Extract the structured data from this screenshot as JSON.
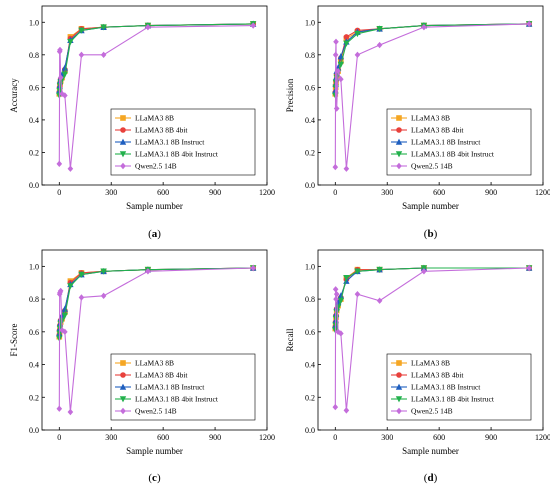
{
  "figure": {
    "panels": [
      {
        "letter": "a",
        "label_open": "(",
        "label_close": ")"
      },
      {
        "letter": "b",
        "label_open": "(",
        "label_close": ")"
      },
      {
        "letter": "c",
        "label_open": "(",
        "label_close": ")"
      },
      {
        "letter": "d",
        "label_open": "(",
        "label_close": ")"
      }
    ]
  },
  "chart_data": [
    {
      "type": "line",
      "ylabel": "Accuracy",
      "xlabel": "Sample number",
      "xlim": [
        -100,
        1200
      ],
      "ylim": [
        0,
        1.1
      ],
      "xticks": [
        0,
        300,
        600,
        900,
        1200
      ],
      "yticks": [
        0.0,
        0.2,
        0.4,
        0.6,
        0.8,
        1.0
      ],
      "x": [
        0,
        2,
        4,
        8,
        16,
        32,
        64,
        128,
        256,
        512,
        1120
      ],
      "legend_position": "lower-right",
      "series": [
        {
          "name": "LLaMA3 8B",
          "color": "#f5a623",
          "marker": "square",
          "values": [
            0.56,
            0.59,
            0.62,
            0.64,
            0.66,
            0.7,
            0.91,
            0.96,
            0.97,
            0.98,
            0.99
          ]
        },
        {
          "name": "LLaMA3 8B 4bit",
          "color": "#e8413c",
          "marker": "circle",
          "values": [
            0.57,
            0.6,
            0.62,
            0.65,
            0.67,
            0.71,
            0.9,
            0.96,
            0.97,
            0.98,
            0.99
          ]
        },
        {
          "name": "LLaMA3.1 8B Instruct",
          "color": "#1f5fbf",
          "marker": "triangle-up",
          "values": [
            0.58,
            0.61,
            0.64,
            0.66,
            0.68,
            0.72,
            0.89,
            0.95,
            0.97,
            0.98,
            0.99
          ]
        },
        {
          "name": "LLaMA3.1 8B 4bit Instruct",
          "color": "#22b14c",
          "marker": "triangle-down",
          "values": [
            0.55,
            0.58,
            0.61,
            0.63,
            0.65,
            0.68,
            0.88,
            0.95,
            0.97,
            0.98,
            0.99
          ]
        },
        {
          "name": "Qwen2.5 14B",
          "color": "#c46ddb",
          "marker": "diamond",
          "values": [
            0.13,
            0.82,
            0.83,
            0.66,
            0.56,
            0.55,
            0.1,
            0.8,
            0.8,
            0.97,
            0.98
          ]
        }
      ]
    },
    {
      "type": "line",
      "ylabel": "Precision",
      "xlabel": "Sample number",
      "xlim": [
        -100,
        1200
      ],
      "ylim": [
        0,
        1.1
      ],
      "xticks": [
        0,
        300,
        600,
        900,
        1200
      ],
      "yticks": [
        0.0,
        0.2,
        0.4,
        0.6,
        0.8,
        1.0
      ],
      "x": [
        0,
        2,
        4,
        8,
        16,
        32,
        64,
        128,
        256,
        512,
        1120
      ],
      "legend_position": "lower-right",
      "series": [
        {
          "name": "LLaMA3 8B",
          "color": "#f5a623",
          "marker": "square",
          "values": [
            0.56,
            0.6,
            0.63,
            0.67,
            0.7,
            0.76,
            0.9,
            0.94,
            0.96,
            0.98,
            0.99
          ]
        },
        {
          "name": "LLaMA3 8B 4bit",
          "color": "#e8413c",
          "marker": "circle",
          "values": [
            0.57,
            0.61,
            0.64,
            0.68,
            0.71,
            0.78,
            0.91,
            0.95,
            0.96,
            0.98,
            0.99
          ]
        },
        {
          "name": "LLaMA3.1 8B Instruct",
          "color": "#1f5fbf",
          "marker": "triangle-up",
          "values": [
            0.58,
            0.62,
            0.66,
            0.7,
            0.72,
            0.79,
            0.88,
            0.94,
            0.96,
            0.98,
            0.99
          ]
        },
        {
          "name": "LLaMA3.1 8B 4bit Instruct",
          "color": "#22b14c",
          "marker": "triangle-down",
          "values": [
            0.55,
            0.6,
            0.63,
            0.66,
            0.69,
            0.74,
            0.87,
            0.93,
            0.96,
            0.98,
            0.99
          ]
        },
        {
          "name": "Qwen2.5 14B",
          "color": "#c46ddb",
          "marker": "diamond",
          "values": [
            0.11,
            0.8,
            0.88,
            0.47,
            0.7,
            0.65,
            0.1,
            0.8,
            0.86,
            0.97,
            0.99
          ]
        }
      ]
    },
    {
      "type": "line",
      "ylabel": "F1-Score",
      "xlabel": "Sample number",
      "xlim": [
        -100,
        1200
      ],
      "ylim": [
        0,
        1.1
      ],
      "xticks": [
        0,
        300,
        600,
        900,
        1200
      ],
      "yticks": [
        0.0,
        0.2,
        0.4,
        0.6,
        0.8,
        1.0
      ],
      "x": [
        0,
        2,
        4,
        8,
        16,
        32,
        64,
        128,
        256,
        512,
        1120
      ],
      "legend_position": "lower-right",
      "series": [
        {
          "name": "LLaMA3 8B",
          "color": "#f5a623",
          "marker": "square",
          "values": [
            0.57,
            0.6,
            0.63,
            0.66,
            0.68,
            0.72,
            0.91,
            0.96,
            0.97,
            0.98,
            0.99
          ]
        },
        {
          "name": "LLaMA3 8B 4bit",
          "color": "#e8413c",
          "marker": "circle",
          "values": [
            0.58,
            0.61,
            0.64,
            0.67,
            0.69,
            0.73,
            0.9,
            0.96,
            0.97,
            0.98,
            0.99
          ]
        },
        {
          "name": "LLaMA3.1 8B Instruct",
          "color": "#1f5fbf",
          "marker": "triangle-up",
          "values": [
            0.59,
            0.62,
            0.65,
            0.68,
            0.7,
            0.74,
            0.89,
            0.95,
            0.97,
            0.98,
            0.99
          ]
        },
        {
          "name": "LLaMA3.1 8B 4bit Instruct",
          "color": "#22b14c",
          "marker": "triangle-down",
          "values": [
            0.56,
            0.59,
            0.62,
            0.65,
            0.67,
            0.7,
            0.88,
            0.95,
            0.97,
            0.98,
            0.99
          ]
        },
        {
          "name": "Qwen2.5 14B",
          "color": "#c46ddb",
          "marker": "diamond",
          "values": [
            0.13,
            0.83,
            0.84,
            0.85,
            0.61,
            0.6,
            0.11,
            0.81,
            0.82,
            0.97,
            0.99
          ]
        }
      ]
    },
    {
      "type": "line",
      "ylabel": "Recall",
      "xlabel": "Sample number",
      "xlim": [
        -100,
        1200
      ],
      "ylim": [
        0,
        1.1
      ],
      "xticks": [
        0,
        300,
        600,
        900,
        1200
      ],
      "yticks": [
        0.0,
        0.2,
        0.4,
        0.6,
        0.8,
        1.0
      ],
      "x": [
        0,
        2,
        4,
        8,
        16,
        32,
        64,
        128,
        256,
        512,
        1120
      ],
      "legend_position": "lower-right",
      "series": [
        {
          "name": "LLaMA3 8B",
          "color": "#f5a623",
          "marker": "square",
          "values": [
            0.62,
            0.65,
            0.69,
            0.73,
            0.76,
            0.8,
            0.93,
            0.98,
            0.98,
            0.99,
            0.99
          ]
        },
        {
          "name": "LLaMA3 8B 4bit",
          "color": "#e8413c",
          "marker": "circle",
          "values": [
            0.63,
            0.66,
            0.7,
            0.74,
            0.77,
            0.81,
            0.92,
            0.98,
            0.98,
            0.99,
            0.99
          ]
        },
        {
          "name": "LLaMA3.1 8B Instruct",
          "color": "#1f5fbf",
          "marker": "triangle-up",
          "values": [
            0.64,
            0.67,
            0.71,
            0.75,
            0.78,
            0.82,
            0.91,
            0.97,
            0.98,
            0.99,
            0.99
          ]
        },
        {
          "name": "LLaMA3.1 8B 4bit Instruct",
          "color": "#22b14c",
          "marker": "triangle-down",
          "values": [
            0.61,
            0.64,
            0.68,
            0.72,
            0.75,
            0.79,
            0.93,
            0.97,
            0.98,
            0.99,
            0.99
          ]
        },
        {
          "name": "Qwen2.5 14B",
          "color": "#c46ddb",
          "marker": "diamond",
          "values": [
            0.14,
            0.86,
            0.8,
            0.83,
            0.6,
            0.59,
            0.12,
            0.83,
            0.79,
            0.97,
            0.99
          ]
        }
      ]
    }
  ]
}
